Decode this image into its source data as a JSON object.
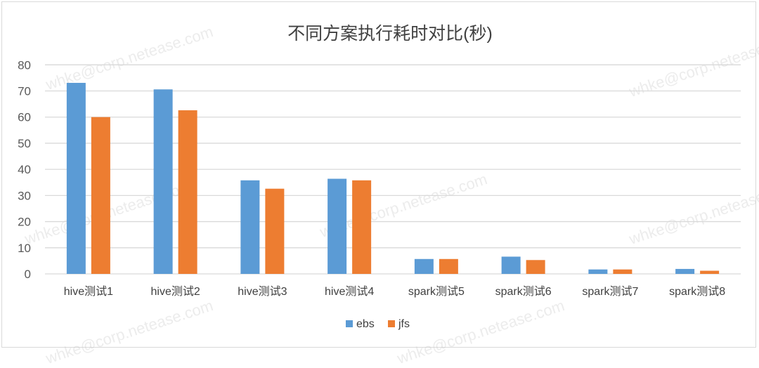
{
  "chart_data": {
    "type": "bar",
    "title": "不同方案执行耗时对比(秒)",
    "categories": [
      "hive测试1",
      "hive测试2",
      "hive测试3",
      "hive测试4",
      "spark测试5",
      "spark测试6",
      "spark测试7",
      "spark测试8"
    ],
    "series": [
      {
        "name": "ebs",
        "color": "#5b9bd5",
        "values": [
          73.1,
          70.6,
          35.8,
          36.4,
          5.7,
          6.6,
          1.7,
          1.9
        ]
      },
      {
        "name": "jfs",
        "color": "#ed7d31",
        "values": [
          60.0,
          62.6,
          32.6,
          35.8,
          5.7,
          5.3,
          1.7,
          1.2
        ]
      }
    ],
    "ylim": [
      0,
      80
    ],
    "yticks": [
      0,
      10,
      20,
      30,
      40,
      50,
      60,
      70,
      80
    ],
    "grid": true,
    "legend": "bottom",
    "xlabel": "",
    "ylabel": ""
  },
  "watermark": "whke@corp.netease.com"
}
